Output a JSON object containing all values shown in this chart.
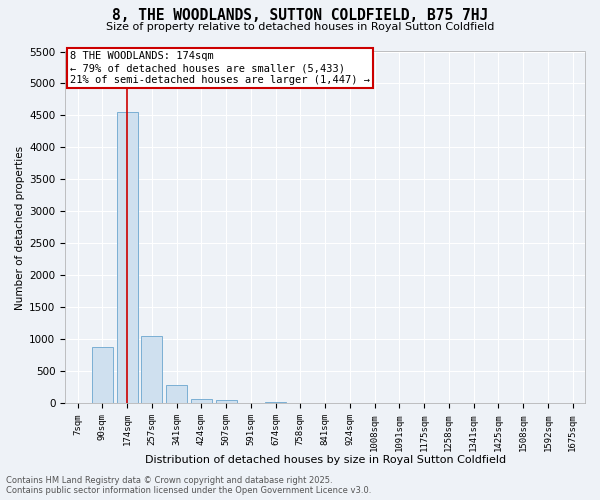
{
  "title": "8, THE WOODLANDS, SUTTON COLDFIELD, B75 7HJ",
  "subtitle": "Size of property relative to detached houses in Royal Sutton Coldfield",
  "xlabel": "Distribution of detached houses by size in Royal Sutton Coldfield",
  "ylabel": "Number of detached properties",
  "annotation_line1": "8 THE WOODLANDS: 174sqm",
  "annotation_line2": "← 79% of detached houses are smaller (5,433)",
  "annotation_line3": "21% of semi-detached houses are larger (1,447) →",
  "bar_color": "#cfe0ef",
  "bar_edge_color": "#7aafd4",
  "line_color": "#cc0000",
  "background_color": "#eef2f7",
  "grid_color": "#ffffff",
  "categories": [
    "7sqm",
    "90sqm",
    "174sqm",
    "257sqm",
    "341sqm",
    "424sqm",
    "507sqm",
    "591sqm",
    "674sqm",
    "758sqm",
    "841sqm",
    "924sqm",
    "1008sqm",
    "1091sqm",
    "1175sqm",
    "1258sqm",
    "1341sqm",
    "1425sqm",
    "1508sqm",
    "1592sqm",
    "1675sqm"
  ],
  "values": [
    0,
    880,
    4550,
    1050,
    290,
    75,
    55,
    0,
    30,
    0,
    0,
    0,
    0,
    0,
    0,
    0,
    0,
    0,
    0,
    0,
    0
  ],
  "ylim": [
    0,
    5500
  ],
  "yticks": [
    0,
    500,
    1000,
    1500,
    2000,
    2500,
    3000,
    3500,
    4000,
    4500,
    5000,
    5500
  ],
  "marker_index": 2,
  "footnote": "Contains HM Land Registry data © Crown copyright and database right 2025.\nContains public sector information licensed under the Open Government Licence v3.0."
}
